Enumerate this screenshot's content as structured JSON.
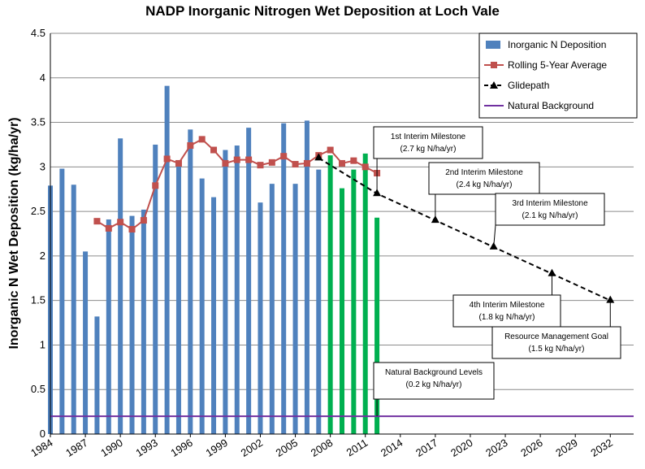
{
  "chart_data": {
    "type": "bar",
    "title": "NADP Inorganic Nitrogen Wet Deposition at Loch Vale",
    "ylabel": "Inorganic N Wet Deposition (kg/ha/yr)",
    "xlabel": "",
    "ylim": [
      0,
      4.5
    ],
    "xlim": [
      1984,
      2034
    ],
    "yticks": [
      "0",
      "0.5",
      "1",
      "1.5",
      "2",
      "2.5",
      "3",
      "3.5",
      "4",
      "4.5"
    ],
    "xticks": [
      "1984",
      "1987",
      "1990",
      "1993",
      "1996",
      "1999",
      "2002",
      "2005",
      "2008",
      "2011",
      "2014",
      "2017",
      "2020",
      "2023",
      "2026",
      "2029",
      "2032"
    ],
    "grid": true,
    "legend_position": "top-right",
    "bars": {
      "name": "Inorganic N Deposition",
      "color": "#4f81bd",
      "x": [
        1984,
        1985,
        1986,
        1987,
        1988,
        1989,
        1990,
        1991,
        1992,
        1993,
        1994,
        1995,
        1996,
        1997,
        1998,
        1999,
        2000,
        2001,
        2002,
        2003,
        2004,
        2005,
        2006,
        2007
      ],
      "values": [
        2.79,
        2.98,
        2.8,
        2.05,
        1.32,
        2.41,
        3.32,
        2.45,
        2.52,
        3.25,
        3.91,
        3.05,
        3.42,
        2.87,
        2.66,
        3.19,
        3.24,
        3.44,
        2.6,
        2.81,
        3.49,
        2.81,
        3.52,
        2.97
      ]
    },
    "bars_recent": {
      "color": "#00b050",
      "x": [
        2008,
        2009,
        2010,
        2011,
        2012
      ],
      "values": [
        3.13,
        2.76,
        2.97,
        3.15,
        2.43
      ]
    },
    "series": [
      {
        "name": "Rolling 5-Year Average",
        "color": "#c0504d",
        "x": [
          1988,
          1989,
          1990,
          1991,
          1992,
          1993,
          1994,
          1995,
          1996,
          1997,
          1998,
          1999,
          2000,
          2001,
          2002,
          2003,
          2004,
          2005,
          2006,
          2007,
          2008,
          2009,
          2010,
          2011,
          2012
        ],
        "values": [
          2.39,
          2.31,
          2.38,
          2.3,
          2.4,
          2.79,
          3.09,
          3.04,
          3.24,
          3.31,
          3.19,
          3.04,
          3.08,
          3.08,
          3.02,
          3.05,
          3.12,
          3.03,
          3.04,
          3.13,
          3.19,
          3.04,
          3.07,
          3.0,
          2.93
        ]
      },
      {
        "name": "Glidepath",
        "color": "#000000",
        "x": [
          2007,
          2012,
          2017,
          2022,
          2027,
          2032
        ],
        "values": [
          3.1,
          2.7,
          2.4,
          2.1,
          1.8,
          1.5
        ]
      },
      {
        "name": "Natural Background",
        "color": "#7030a0",
        "x": [
          1984,
          2034
        ],
        "values": [
          0.2,
          0.2
        ]
      }
    ],
    "annotations": [
      {
        "title": "1st Interim Milestone",
        "value": "(2.7 kg N/ha/yr)",
        "target_x": 2012,
        "target_y": 2.7
      },
      {
        "title": "2nd Interim Milestone",
        "value": "(2.4 kg N/ha/yr)",
        "target_x": 2017,
        "target_y": 2.4
      },
      {
        "title": "3rd Interim Milestone",
        "value": "(2.1 kg N/ha/yr)",
        "target_x": 2022,
        "target_y": 2.1
      },
      {
        "title": "4th Interim Milestone",
        "value": "(1.8 kg N/ha/yr)",
        "target_x": 2027,
        "target_y": 1.8
      },
      {
        "title": "Resource Management Goal",
        "value": "(1.5 kg N/ha/yr)",
        "target_x": 2032,
        "target_y": 1.5
      },
      {
        "title": "Natural Background Levels",
        "value": "(0.2 kg N/ha/yr)",
        "target_x": 2012,
        "target_y": 0.2
      }
    ]
  }
}
